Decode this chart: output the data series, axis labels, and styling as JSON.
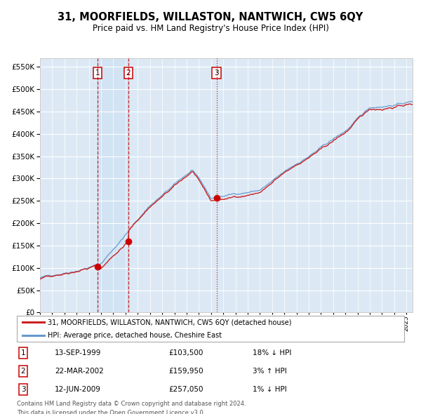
{
  "title": "31, MOORFIELDS, WILLASTON, NANTWICH, CW5 6QY",
  "subtitle": "Price paid vs. HM Land Registry's House Price Index (HPI)",
  "legend_line1": "31, MOORFIELDS, WILLASTON, NANTWICH, CW5 6QY (detached house)",
  "legend_line2": "HPI: Average price, detached house, Cheshire East",
  "footnote1": "Contains HM Land Registry data © Crown copyright and database right 2024.",
  "footnote2": "This data is licensed under the Open Government Licence v3.0.",
  "sale_labels": [
    "1",
    "2",
    "3"
  ],
  "sale_dates_label": [
    "13-SEP-1999",
    "22-MAR-2002",
    "12-JUN-2009"
  ],
  "sale_prices_label": [
    "£103,500",
    "£159,950",
    "£257,050"
  ],
  "sale_hpi_label": [
    "18% ↓ HPI",
    "3% ↑ HPI",
    "1% ↓ HPI"
  ],
  "sale_years": [
    1999.7,
    2002.23,
    2009.45
  ],
  "sale_prices": [
    103500,
    159950,
    257050
  ],
  "hpi_color": "#6699cc",
  "price_color": "#cc2222",
  "sale_dot_color": "#cc0000",
  "dashed_line_color": "#cc0000",
  "background_color": "#dce9f5",
  "grid_color": "#ffffff",
  "ylim": [
    0,
    570000
  ],
  "yticks": [
    0,
    50000,
    100000,
    150000,
    200000,
    250000,
    300000,
    350000,
    400000,
    450000,
    500000,
    550000
  ],
  "xstart": 1995.0,
  "xend": 2025.5
}
